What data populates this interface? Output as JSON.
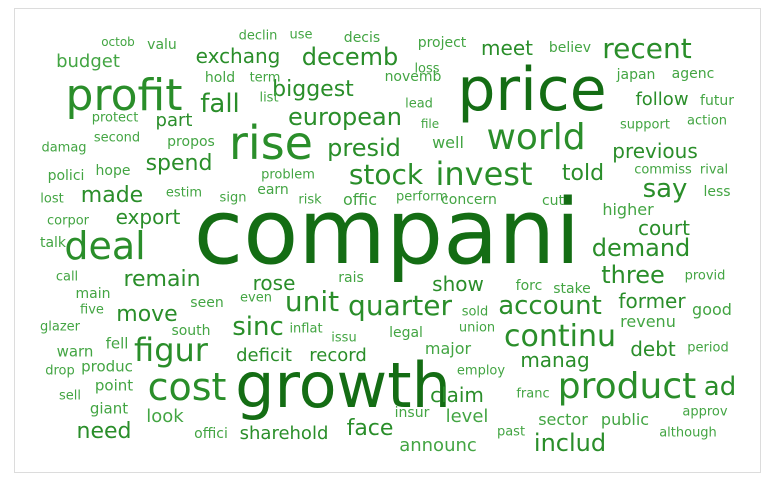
{
  "colors": {
    "dark": "#146d14",
    "mid": "#2a8e2a",
    "light": "#43a543"
  },
  "words": [
    {
      "id": "companies",
      "text": "compani"
    },
    {
      "id": "price",
      "text": "price"
    },
    {
      "id": "growth",
      "text": "growth"
    },
    {
      "id": "rise",
      "text": "rise"
    },
    {
      "id": "profit",
      "text": "profit"
    },
    {
      "id": "world",
      "text": "world"
    },
    {
      "id": "cost",
      "text": "cost"
    },
    {
      "id": "product",
      "text": "product"
    },
    {
      "id": "deal",
      "text": "deal"
    },
    {
      "id": "invest",
      "text": "invest"
    },
    {
      "id": "stock",
      "text": "stock"
    },
    {
      "id": "decemb",
      "text": "decemb"
    },
    {
      "id": "continu",
      "text": "continu"
    },
    {
      "id": "quarter",
      "text": "quarter"
    },
    {
      "id": "unit",
      "text": "unit"
    },
    {
      "id": "figur",
      "text": "figur"
    },
    {
      "id": "account",
      "text": "account"
    },
    {
      "id": "recent",
      "text": "recent"
    },
    {
      "id": "european",
      "text": "european"
    },
    {
      "id": "fall",
      "text": "fall"
    },
    {
      "id": "biggest",
      "text": "biggest"
    },
    {
      "id": "presid",
      "text": "presid"
    },
    {
      "id": "sinc",
      "text": "sinc"
    },
    {
      "id": "demand",
      "text": "demand"
    },
    {
      "id": "three",
      "text": "three"
    },
    {
      "id": "say",
      "text": "say"
    },
    {
      "id": "ad",
      "text": "ad"
    },
    {
      "id": "includ",
      "text": "includ"
    },
    {
      "id": "exchang",
      "text": "exchang"
    },
    {
      "id": "meet",
      "text": "meet"
    },
    {
      "id": "told",
      "text": "told"
    },
    {
      "id": "made",
      "text": "made"
    },
    {
      "id": "spend",
      "text": "spend"
    },
    {
      "id": "remain",
      "text": "remain"
    },
    {
      "id": "move",
      "text": "move"
    },
    {
      "id": "show",
      "text": "show"
    },
    {
      "id": "rose",
      "text": "rose"
    },
    {
      "id": "face",
      "text": "face"
    },
    {
      "id": "manag",
      "text": "manag"
    },
    {
      "id": "need",
      "text": "need"
    },
    {
      "id": "deficit",
      "text": "deficit"
    },
    {
      "id": "record",
      "text": "record"
    },
    {
      "id": "export",
      "text": "export"
    },
    {
      "id": "claim",
      "text": "claim"
    },
    {
      "id": "court",
      "text": "court"
    },
    {
      "id": "previous",
      "text": "previous"
    },
    {
      "id": "debt",
      "text": "debt"
    },
    {
      "id": "former",
      "text": "former"
    },
    {
      "id": "sharehold",
      "text": "sharehold"
    },
    {
      "id": "budget",
      "text": "budget"
    },
    {
      "id": "part",
      "text": "part"
    },
    {
      "id": "follow",
      "text": "follow"
    },
    {
      "id": "major",
      "text": "major"
    },
    {
      "id": "level",
      "text": "level"
    },
    {
      "id": "sector",
      "text": "sector"
    },
    {
      "id": "look",
      "text": "look"
    },
    {
      "id": "announc",
      "text": "announc"
    },
    {
      "id": "public",
      "text": "public"
    },
    {
      "id": "well",
      "text": "well"
    },
    {
      "id": "offic",
      "text": "offic"
    },
    {
      "id": "good",
      "text": "good"
    },
    {
      "id": "higher",
      "text": "higher"
    },
    {
      "id": "revenu",
      "text": "revenu"
    },
    {
      "id": "valu",
      "text": "valu"
    },
    {
      "id": "decis",
      "text": "decis"
    },
    {
      "id": "project",
      "text": "project"
    },
    {
      "id": "believ",
      "text": "believ"
    },
    {
      "id": "hold",
      "text": "hold"
    },
    {
      "id": "novemb",
      "text": "novemb"
    },
    {
      "id": "agenc",
      "text": "agenc"
    },
    {
      "id": "japan",
      "text": "japan"
    },
    {
      "id": "futur",
      "text": "futur"
    },
    {
      "id": "lead",
      "text": "lead"
    },
    {
      "id": "list",
      "text": "list"
    },
    {
      "id": "term",
      "text": "term"
    },
    {
      "id": "loss",
      "text": "loss"
    },
    {
      "id": "propos",
      "text": "propos"
    },
    {
      "id": "hope",
      "text": "hope"
    },
    {
      "id": "polici",
      "text": "polici"
    },
    {
      "id": "damag",
      "text": "damag"
    },
    {
      "id": "problem",
      "text": "problem"
    },
    {
      "id": "earn",
      "text": "earn"
    },
    {
      "id": "sign",
      "text": "sign"
    },
    {
      "id": "estim",
      "text": "estim"
    },
    {
      "id": "support",
      "text": "support"
    },
    {
      "id": "action",
      "text": "action"
    },
    {
      "id": "commiss",
      "text": "commiss"
    },
    {
      "id": "rival",
      "text": "rival"
    },
    {
      "id": "less",
      "text": "less"
    },
    {
      "id": "concern",
      "text": "concern"
    },
    {
      "id": "perform",
      "text": "perform"
    },
    {
      "id": "cut",
      "text": "cut"
    },
    {
      "id": "risk",
      "text": "risk"
    },
    {
      "id": "corpor",
      "text": "corpor"
    },
    {
      "id": "lost",
      "text": "lost"
    },
    {
      "id": "talk",
      "text": "talk"
    },
    {
      "id": "call",
      "text": "call"
    },
    {
      "id": "main",
      "text": "main"
    },
    {
      "id": "five",
      "text": "five"
    },
    {
      "id": "glazer",
      "text": "glazer"
    },
    {
      "id": "warn",
      "text": "warn"
    },
    {
      "id": "fell",
      "text": "fell"
    },
    {
      "id": "drop",
      "text": "drop"
    },
    {
      "id": "produc",
      "text": "produc"
    },
    {
      "id": "point",
      "text": "point"
    },
    {
      "id": "sell",
      "text": "sell"
    },
    {
      "id": "giant",
      "text": "giant"
    },
    {
      "id": "seen",
      "text": "seen"
    },
    {
      "id": "even",
      "text": "even"
    },
    {
      "id": "south",
      "text": "south"
    },
    {
      "id": "inflat",
      "text": "inflat"
    },
    {
      "id": "issu",
      "text": "issu"
    },
    {
      "id": "legal",
      "text": "legal"
    },
    {
      "id": "rais",
      "text": "rais"
    },
    {
      "id": "forc",
      "text": "forc"
    },
    {
      "id": "stake",
      "text": "stake"
    },
    {
      "id": "provid",
      "text": "provid"
    },
    {
      "id": "sold",
      "text": "sold"
    },
    {
      "id": "union",
      "text": "union"
    },
    {
      "id": "employ",
      "text": "employ"
    },
    {
      "id": "franc",
      "text": "franc"
    },
    {
      "id": "insur",
      "text": "insur"
    },
    {
      "id": "past",
      "text": "past"
    },
    {
      "id": "approv",
      "text": "approv"
    },
    {
      "id": "although",
      "text": "although"
    },
    {
      "id": "period",
      "text": "period"
    },
    {
      "id": "offici",
      "text": "offici"
    },
    {
      "id": "octob",
      "text": "octob"
    },
    {
      "id": "declin",
      "text": "declin"
    },
    {
      "id": "use",
      "text": "use"
    },
    {
      "id": "second",
      "text": "second"
    },
    {
      "id": "protect",
      "text": "protect"
    },
    {
      "id": "file",
      "text": "file"
    }
  ]
}
